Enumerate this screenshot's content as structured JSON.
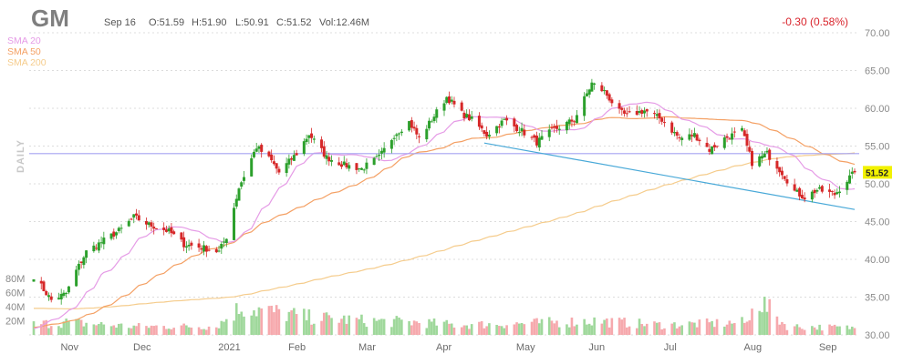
{
  "header": {
    "symbol": "GM",
    "date": "Sep 16",
    "open": "O:51.59",
    "high": "H:51.90",
    "low": "L:50.91",
    "close": "C:51.52",
    "volume": "Vol:12.46M",
    "change": "-0.30 (0.58%)"
  },
  "legend": {
    "sma20": "SMA 20",
    "sma50": "SMA 50",
    "sma200": "SMA 200",
    "period": "DAILY",
    "last_value": "51.52"
  },
  "colors": {
    "up": "#2ca02c",
    "down": "#d62728",
    "sma20": "#e59be6",
    "sma50": "#f4a064",
    "sma200": "#f5cc8c",
    "trendline": "#49a9d8",
    "support": "#a6a4f2",
    "vol_up": "#9fd89b",
    "vol_down": "#f6a9ad",
    "last_value_bg": "#f2f200"
  },
  "chart_data": {
    "type": "candlestick",
    "y_ticks": [
      "70.00",
      "65.00",
      "60.00",
      "55.00",
      "50.00",
      "45.00",
      "40.00",
      "35.00",
      "30.00"
    ],
    "ylim": [
      30,
      70
    ],
    "volume_ticks": [
      "80M",
      "60M",
      "40M",
      "20M"
    ],
    "x_labels": [
      "Nov",
      "Dec",
      "2021",
      "Feb",
      "Mar",
      "Apr",
      "May",
      "Jun",
      "Jul",
      "Aug",
      "Sep"
    ],
    "last_price": 51.52,
    "support_level": 54,
    "trendline": [
      {
        "date": "Apr 21",
        "value": 55.4
      },
      {
        "date": "Sep 16",
        "value": 46.6
      }
    ],
    "close_anchors": [
      [
        "Oct 23",
        37.8
      ],
      [
        "Oct 30",
        34.6
      ],
      [
        "Nov 5",
        35.5
      ],
      [
        "Nov 9",
        38.5
      ],
      [
        "Nov 13",
        41.0
      ],
      [
        "Nov 20",
        42.5
      ],
      [
        "Nov 27",
        44.0
      ],
      [
        "Dec 2",
        45.6
      ],
      [
        "Dec 8",
        44.6
      ],
      [
        "Dec 16",
        43.7
      ],
      [
        "Dec 22",
        42.0
      ],
      [
        "Dec 30",
        41.5
      ],
      [
        "Jan 5",
        41.0
      ],
      [
        "Jan 8",
        43.0
      ],
      [
        "Jan 13",
        49.5
      ],
      [
        "Jan 20",
        54.9
      ],
      [
        "Jan 26",
        53.0
      ],
      [
        "Jan 29",
        51.5
      ],
      [
        "Feb 5",
        54.0
      ],
      [
        "Feb 10",
        56.6
      ],
      [
        "Feb 17",
        53.5
      ],
      [
        "Feb 24",
        52.5
      ],
      [
        "Mar 3",
        52.0
      ],
      [
        "Mar 10",
        53.5
      ],
      [
        "Mar 16",
        56.5
      ],
      [
        "Mar 22",
        58.2
      ],
      [
        "Mar 26",
        56.0
      ],
      [
        "Apr 1",
        59.0
      ],
      [
        "Apr 6",
        61.5
      ],
      [
        "Apr 12",
        59.3
      ],
      [
        "Apr 16",
        58.5
      ],
      [
        "Apr 22",
        56.5
      ],
      [
        "Apr 29",
        58.4
      ],
      [
        "May 6",
        57.0
      ],
      [
        "May 12",
        55.5
      ],
      [
        "May 18",
        57.0
      ],
      [
        "May 21",
        57.5
      ],
      [
        "May 27",
        58.5
      ],
      [
        "Jun 3",
        63.3
      ],
      [
        "Jun 8",
        62.2
      ],
      [
        "Jun 14",
        59.5
      ],
      [
        "Jun 17",
        59.0
      ],
      [
        "Jun 24",
        59.7
      ],
      [
        "Jul 1",
        58.5
      ],
      [
        "Jul 8",
        56.0
      ],
      [
        "Jul 14",
        56.5
      ],
      [
        "Jul 20",
        54.5
      ],
      [
        "Jul 26",
        56.0
      ],
      [
        "Aug 2",
        57.0
      ],
      [
        "Aug 6",
        52.8
      ],
      [
        "Aug 12",
        54.0
      ],
      [
        "Aug 18",
        51.5
      ],
      [
        "Aug 23",
        49.0
      ],
      [
        "Aug 27",
        48.2
      ],
      [
        "Sep 1",
        49.2
      ],
      [
        "Sep 8",
        48.6
      ],
      [
        "Sep 13",
        50.5
      ],
      [
        "Sep 16",
        51.52
      ]
    ],
    "volume_anchors": [
      [
        "Oct 23",
        15
      ],
      [
        "Nov 5",
        18
      ],
      [
        "Dec 1",
        12
      ],
      [
        "Jan 4",
        12
      ],
      [
        "Jan 14",
        40
      ],
      [
        "Jan 22",
        35
      ],
      [
        "Feb 10",
        25
      ],
      [
        "Mar 5",
        20
      ],
      [
        "Mar 25",
        18
      ],
      [
        "Apr 10",
        14
      ],
      [
        "May 5",
        16
      ],
      [
        "Jun 4",
        20
      ],
      [
        "Jul 1",
        14
      ],
      [
        "Aug 5",
        18
      ],
      [
        "Aug 6",
        58
      ],
      [
        "Aug 20",
        12
      ],
      [
        "Sep 16",
        10
      ]
    ]
  }
}
